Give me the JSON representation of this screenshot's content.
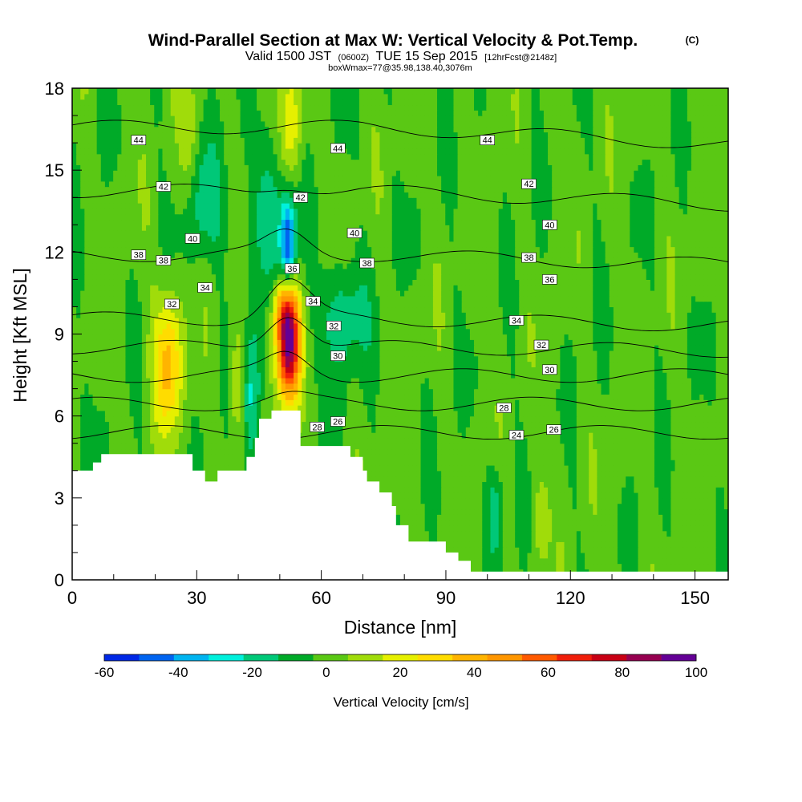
{
  "chart_data": {
    "type": "heatmap",
    "title": "Wind-Parallel Section at Max W: Vertical Velocity & Pot.Temp.",
    "copyright": "(C)",
    "subtitle": {
      "valid_prefix": "Valid 1500 JST",
      "utc": "(0600Z)",
      "date": "TUE 15 Sep 2015",
      "forecast": "[12hrFcst@2148z]"
    },
    "box_info": "boxWmax=77@35.98,138.40,3076m",
    "xlabel": "Distance [nm]",
    "ylabel": "Height [Kft MSL]",
    "xlim": [
      0,
      158
    ],
    "ylim": [
      0,
      18
    ],
    "x_ticks": [
      0,
      30,
      60,
      90,
      120,
      150
    ],
    "y_ticks": [
      0,
      3,
      6,
      9,
      12,
      15,
      18
    ],
    "colorbar": {
      "title": "Vertical Velocity [cm/s]",
      "min": -60,
      "max": 100,
      "step": 10,
      "tick_labels": [
        "-60",
        "-40",
        "-20",
        "0",
        "20",
        "40",
        "60",
        "80",
        "100"
      ],
      "colors": [
        "#0028e6",
        "#0064f0",
        "#00b4f0",
        "#00f0dc",
        "#00c878",
        "#00aa28",
        "#5ac814",
        "#a0dc0a",
        "#e6f000",
        "#ffdc00",
        "#ffb400",
        "#ff9600",
        "#ff5a00",
        "#f01e0a",
        "#c80014",
        "#960050",
        "#640096"
      ]
    },
    "terrain": [
      [
        0,
        4.0
      ],
      [
        5,
        4.0
      ],
      [
        5,
        4.3
      ],
      [
        7,
        4.3
      ],
      [
        7,
        4.6
      ],
      [
        29,
        4.6
      ],
      [
        29,
        4.0
      ],
      [
        32,
        4.0
      ],
      [
        32,
        3.6
      ],
      [
        35,
        3.6
      ],
      [
        35,
        4.0
      ],
      [
        42,
        4.0
      ],
      [
        42,
        4.5
      ],
      [
        44,
        4.5
      ],
      [
        44,
        5.2
      ],
      [
        45,
        5.2
      ],
      [
        45,
        5.9
      ],
      [
        48,
        5.9
      ],
      [
        48,
        6.2
      ],
      [
        55,
        6.2
      ],
      [
        55,
        4.9
      ],
      [
        67,
        4.9
      ],
      [
        67,
        4.5
      ],
      [
        70,
        4.5
      ],
      [
        70,
        4.0
      ],
      [
        71,
        4.0
      ],
      [
        71,
        3.6
      ],
      [
        74,
        3.6
      ],
      [
        74,
        3.2
      ],
      [
        77,
        3.2
      ],
      [
        77,
        2.7
      ],
      [
        78,
        2.7
      ],
      [
        78,
        2.0
      ],
      [
        81,
        2.0
      ],
      [
        81,
        1.4
      ],
      [
        90,
        1.4
      ],
      [
        90,
        1.0
      ],
      [
        93,
        1.0
      ],
      [
        93,
        0.7
      ],
      [
        96,
        0.7
      ],
      [
        96,
        0.3
      ],
      [
        158,
        0.3
      ]
    ],
    "w_centers": [
      {
        "x": 52,
        "y": 8.6,
        "sx": 2.0,
        "sy": 1.4,
        "a": 98
      },
      {
        "x": 51,
        "y": 10.0,
        "sx": 2.0,
        "sy": 0.8,
        "a": 30
      },
      {
        "x": 23,
        "y": 8.0,
        "sx": 2.5,
        "sy": 1.8,
        "a": 40
      },
      {
        "x": 40,
        "y": 7.0,
        "sx": 1.6,
        "sy": 1.6,
        "a": 22
      },
      {
        "x": 52,
        "y": 12.3,
        "sx": 1.3,
        "sy": 1.3,
        "a": -55
      },
      {
        "x": 47,
        "y": 13.5,
        "sx": 2.5,
        "sy": 2.0,
        "a": -20
      },
      {
        "x": 65,
        "y": 9.6,
        "sx": 4.0,
        "sy": 1.4,
        "a": -22
      },
      {
        "x": 43,
        "y": 6.7,
        "sx": 1.8,
        "sy": 1.8,
        "a": -28
      },
      {
        "x": 32,
        "y": 13.8,
        "sx": 3.5,
        "sy": 1.5,
        "a": -18
      },
      {
        "x": 53,
        "y": 16.8,
        "sx": 1.8,
        "sy": 1.4,
        "a": 22
      },
      {
        "x": 28,
        "y": 16.0,
        "sx": 1.5,
        "sy": 1.6,
        "a": 15
      },
      {
        "x": 102,
        "y": 2.6,
        "sx": 1.5,
        "sy": 1.2,
        "a": -20
      },
      {
        "x": 113,
        "y": 2.3,
        "sx": 1.5,
        "sy": 1.2,
        "a": 15
      }
    ],
    "theta_levels": [
      24,
      26,
      28,
      30,
      32,
      34,
      36,
      38,
      40,
      42,
      44
    ],
    "contour_labels": [
      {
        "text": "44",
        "x": 16,
        "y": 16.1
      },
      {
        "text": "44",
        "x": 64,
        "y": 15.8
      },
      {
        "text": "44",
        "x": 100,
        "y": 16.1
      },
      {
        "text": "42",
        "x": 22,
        "y": 14.4
      },
      {
        "text": "42",
        "x": 55,
        "y": 14.0
      },
      {
        "text": "42",
        "x": 110,
        "y": 14.5
      },
      {
        "text": "40",
        "x": 29,
        "y": 12.5
      },
      {
        "text": "40",
        "x": 68,
        "y": 12.7
      },
      {
        "text": "40",
        "x": 115,
        "y": 13.0
      },
      {
        "text": "38",
        "x": 16,
        "y": 11.9
      },
      {
        "text": "38",
        "x": 22,
        "y": 11.7
      },
      {
        "text": "38",
        "x": 71,
        "y": 11.6
      },
      {
        "text": "38",
        "x": 110,
        "y": 11.8
      },
      {
        "text": "36",
        "x": 53,
        "y": 11.4
      },
      {
        "text": "36",
        "x": 115,
        "y": 11.0
      },
      {
        "text": "34",
        "x": 32,
        "y": 10.7
      },
      {
        "text": "34",
        "x": 58,
        "y": 10.2
      },
      {
        "text": "34",
        "x": 107,
        "y": 9.5
      },
      {
        "text": "32",
        "x": 24,
        "y": 10.1
      },
      {
        "text": "32",
        "x": 63,
        "y": 9.3
      },
      {
        "text": "32",
        "x": 113,
        "y": 8.6
      },
      {
        "text": "30",
        "x": 64,
        "y": 8.2
      },
      {
        "text": "30",
        "x": 115,
        "y": 7.7
      },
      {
        "text": "28",
        "x": 59,
        "y": 5.6
      },
      {
        "text": "28",
        "x": 104,
        "y": 6.3
      },
      {
        "text": "26",
        "x": 64,
        "y": 5.8
      },
      {
        "text": "26",
        "x": 116,
        "y": 5.5
      },
      {
        "text": "24",
        "x": 107,
        "y": 5.3
      }
    ]
  }
}
